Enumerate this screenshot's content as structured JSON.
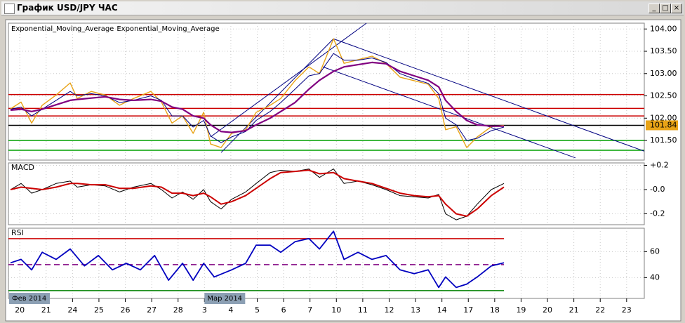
{
  "window": {
    "title": "График USD/JPY ЧАС"
  },
  "chart_data": [
    {
      "type": "line",
      "panel": "price",
      "xlim": [
        -0.43,
        23.67
      ],
      "ylim": [
        101.06,
        104.13
      ],
      "yticks": [
        {
          "value": 104,
          "label": "104.00"
        },
        {
          "value": 103.5,
          "label": "103.50"
        },
        {
          "value": 103,
          "label": "103.00"
        },
        {
          "value": 102.5,
          "label": "102.50"
        },
        {
          "value": 102,
          "label": "102.00"
        },
        {
          "value": 101.5,
          "label": "101.50"
        }
      ],
      "grid": true,
      "x": [
        -0.35,
        0.05,
        0.45,
        0.85,
        1.38,
        1.91,
        2.18,
        2.71,
        3.24,
        3.78,
        4.31,
        4.97,
        5.37,
        5.77,
        6.17,
        6.57,
        6.97,
        7.23,
        7.63,
        8.03,
        8.56,
        8.96,
        9.49,
        9.89,
        10.43,
        10.96,
        11.36,
        11.89,
        12.29,
        12.82,
        13.35,
        13.88,
        14.41,
        14.95,
        15.48,
        15.88,
        16.14,
        16.54,
        16.94,
        17.34,
        17.87,
        18.35
      ],
      "series": [
        {
          "color": "#e8a317",
          "width": 1.4,
          "values": [
            102.21,
            102.36,
            101.89,
            102.29,
            102.52,
            102.79,
            102.44,
            102.6,
            102.52,
            102.29,
            102.44,
            102.6,
            102.36,
            101.89,
            102.05,
            101.66,
            102.13,
            101.42,
            101.34,
            101.66,
            101.74,
            102.13,
            102.29,
            102.44,
            102.84,
            103.15,
            103,
            103.78,
            103.23,
            103.31,
            103.39,
            103.23,
            102.92,
            102.84,
            102.76,
            102.44,
            101.74,
            101.81,
            101.34,
            101.58,
            101.81,
            101.84
          ]
        },
        {
          "name": "Exponential_Moving_Average",
          "color": "#000080",
          "width": 1,
          "values": [
            102.2,
            102.25,
            102.05,
            102.2,
            102.4,
            102.6,
            102.5,
            102.55,
            102.5,
            102.35,
            102.4,
            102.5,
            102.4,
            102.05,
            102.05,
            101.8,
            101.95,
            101.6,
            101.45,
            101.58,
            101.7,
            101.95,
            102.15,
            102.35,
            102.65,
            102.95,
            103,
            103.45,
            103.3,
            103.3,
            103.35,
            103.25,
            103,
            102.88,
            102.78,
            102.55,
            102,
            101.85,
            101.5,
            101.55,
            101.72,
            101.8
          ]
        },
        {
          "name": "Exponential_Moving_Average",
          "color": "#800080",
          "width": 2.2,
          "values": [
            102.18,
            102.2,
            102.15,
            102.2,
            102.3,
            102.4,
            102.42,
            102.45,
            102.48,
            102.42,
            102.4,
            102.42,
            102.38,
            102.25,
            102.2,
            102.05,
            102,
            101.85,
            101.7,
            101.68,
            101.72,
            101.85,
            102,
            102.15,
            102.35,
            102.65,
            102.85,
            103.05,
            103.15,
            103.2,
            103.25,
            103.22,
            103.05,
            102.95,
            102.85,
            102.7,
            102.4,
            102.15,
            101.95,
            101.85,
            101.82,
            101.82
          ]
        }
      ],
      "levels": [
        {
          "value": 102.53,
          "color": "#cc0000"
        },
        {
          "value": 102.22,
          "color": "#cc0000"
        },
        {
          "value": 102.05,
          "color": "#cc0000"
        },
        {
          "value": 101.84,
          "color": "#000000"
        },
        {
          "value": 101.5,
          "color": "#00a000"
        },
        {
          "value": 101.28,
          "color": "#00a000"
        }
      ],
      "trendlines": [
        {
          "color": "#000080",
          "points": [
            [
              7.63,
              101.23
            ],
            [
              11.89,
              103.78
            ]
          ]
        },
        {
          "color": "#000080",
          "points": [
            [
              7.23,
              101.58
            ],
            [
              13.14,
              104.13
            ]
          ]
        },
        {
          "color": "#000080",
          "points": [
            [
              11.89,
              103.78
            ],
            [
              23.67,
              101.26
            ]
          ]
        },
        {
          "color": "#000080",
          "points": [
            [
              11.49,
              103.15
            ],
            [
              21.06,
              101.11
            ]
          ]
        }
      ],
      "last_price": 101.84,
      "last_price_color": "#e8a317"
    },
    {
      "type": "line",
      "panel": "macd",
      "title": "MACD",
      "xlim": [
        -0.43,
        23.67
      ],
      "ylim": [
        -0.29,
        0.22
      ],
      "yticks": [
        {
          "value": 0.2,
          "label": "+0.2"
        },
        {
          "value": 0,
          "label": "-0.0"
        },
        {
          "value": -0.2,
          "label": "-0.2"
        }
      ],
      "grid": true,
      "x": [
        -0.35,
        0.05,
        0.45,
        0.85,
        1.38,
        1.91,
        2.18,
        2.71,
        3.24,
        3.78,
        4.31,
        4.97,
        5.37,
        5.77,
        6.17,
        6.57,
        6.97,
        7.23,
        7.63,
        8.03,
        8.56,
        8.96,
        9.49,
        9.89,
        10.43,
        10.96,
        11.36,
        11.89,
        12.29,
        12.82,
        13.35,
        13.88,
        14.41,
        14.95,
        15.48,
        15.88,
        16.14,
        16.54,
        16.94,
        17.34,
        17.87,
        18.35
      ],
      "series": [
        {
          "color": "#000000",
          "width": 1,
          "values": [
            0,
            0.05,
            -0.03,
            0,
            0.05,
            0.07,
            0.02,
            0.04,
            0.03,
            -0.02,
            0.02,
            0.05,
            0,
            -0.07,
            -0.02,
            -0.08,
            0,
            -0.1,
            -0.16,
            -0.08,
            -0.02,
            0.05,
            0.14,
            0.16,
            0.15,
            0.17,
            0.1,
            0.17,
            0.05,
            0.07,
            0.04,
            0,
            -0.05,
            -0.06,
            -0.07,
            -0.04,
            -0.2,
            -0.25,
            -0.22,
            -0.12,
            0,
            0.05
          ]
        },
        {
          "color": "#cc0000",
          "width": 2,
          "values": [
            0,
            0.02,
            0.01,
            0,
            0.02,
            0.05,
            0.05,
            0.04,
            0.04,
            0.01,
            0.01,
            0.03,
            0.02,
            -0.03,
            -0.03,
            -0.05,
            -0.03,
            -0.06,
            -0.12,
            -0.1,
            -0.05,
            0.01,
            0.09,
            0.14,
            0.15,
            0.16,
            0.13,
            0.14,
            0.09,
            0.07,
            0.05,
            0.01,
            -0.03,
            -0.05,
            -0.06,
            -0.05,
            -0.12,
            -0.2,
            -0.22,
            -0.16,
            -0.05,
            0.02
          ]
        }
      ]
    },
    {
      "type": "line",
      "panel": "rsi",
      "title": "RSI",
      "xlim": [
        -0.43,
        23.67
      ],
      "ylim": [
        24,
        78
      ],
      "yticks": [
        60,
        40
      ],
      "grid": true,
      "x": [
        -0.35,
        0.05,
        0.45,
        0.85,
        1.38,
        1.91,
        2.45,
        2.98,
        3.51,
        4.04,
        4.57,
        5.11,
        5.64,
        6.17,
        6.57,
        6.97,
        7.37,
        8.03,
        8.56,
        8.96,
        9.49,
        9.89,
        10.43,
        10.96,
        11.36,
        11.89,
        12.29,
        12.82,
        13.35,
        13.88,
        14.41,
        14.95,
        15.48,
        15.88,
        16.14,
        16.54,
        16.94,
        17.34,
        17.87,
        18.35
      ],
      "series": [
        {
          "color": "#0000c0",
          "width": 1.8,
          "values": [
            51.4,
            54,
            46,
            59.5,
            54,
            62,
            49,
            57,
            46,
            51,
            46,
            57,
            38,
            51,
            38,
            51,
            40.5,
            46,
            51,
            65,
            65,
            59.5,
            67.6,
            70,
            62,
            75.7,
            54,
            59.5,
            54,
            57,
            46,
            43,
            46,
            32.4,
            40.5,
            32.4,
            35,
            40.5,
            49,
            51.4
          ]
        }
      ],
      "levels": [
        {
          "value": 70,
          "color": "#cc0000"
        },
        {
          "value": 50,
          "color": "#800080",
          "style": "dashed"
        },
        {
          "value": 30,
          "color": "#008000"
        }
      ],
      "xticks": [
        {
          "value": 0,
          "label": "20"
        },
        {
          "value": 1,
          "label": "21"
        },
        {
          "value": 2,
          "label": "24"
        },
        {
          "value": 3,
          "label": "25"
        },
        {
          "value": 4,
          "label": "26"
        },
        {
          "value": 5,
          "label": "27"
        },
        {
          "value": 6,
          "label": "28"
        },
        {
          "value": 7,
          "label": "3"
        },
        {
          "value": 8,
          "label": "4"
        },
        {
          "value": 9,
          "label": "5"
        },
        {
          "value": 10,
          "label": "6"
        },
        {
          "value": 11,
          "label": "7"
        },
        {
          "value": 12,
          "label": "10"
        },
        {
          "value": 13,
          "label": "11"
        },
        {
          "value": 14,
          "label": "12"
        },
        {
          "value": 15,
          "label": "13"
        },
        {
          "value": 16,
          "label": "14"
        },
        {
          "value": 17,
          "label": "17"
        },
        {
          "value": 18,
          "label": "18"
        },
        {
          "value": 19,
          "label": "19"
        },
        {
          "value": 20,
          "label": "20"
        },
        {
          "value": 21,
          "label": "21"
        },
        {
          "value": 22,
          "label": "22"
        },
        {
          "value": 23,
          "label": "23"
        }
      ],
      "period_labels": [
        {
          "value": -0.43,
          "label": "Фев 2014"
        },
        {
          "value": 7,
          "label": "Мар 2014"
        }
      ]
    }
  ]
}
